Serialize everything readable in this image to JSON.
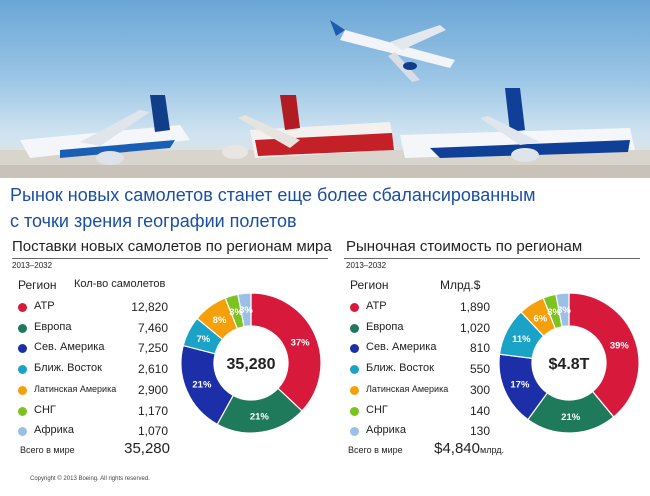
{
  "title_line1": "Рынок новых самолетов станет еще более сбалансированным",
  "title_line2": "с точки зрения географии полетов",
  "colors": {
    "АТР": "#d7193c",
    "Европа": "#1f7a5c",
    "Сев. Америка": "#1c2fa8",
    "Ближ. Восток": "#1aa3c6",
    "Латинская Америка": "#f5a00a",
    "СНГ": "#7cc320",
    "Африка": "#9cbfe6"
  },
  "left": {
    "heading": "Поставки новых самолетов по регионам мира",
    "period": "2013–2032",
    "col_region": "Регион",
    "col_value": "Кол-во самолетов",
    "rows": [
      {
        "name": "АТР",
        "value": "12,820"
      },
      {
        "name": "Европа",
        "value": "7,460"
      },
      {
        "name": "Сев. Америка",
        "value": "7,250"
      },
      {
        "name": "Ближ. Восток",
        "value": "2,610"
      },
      {
        "name": "Латинская Америка",
        "value": "2,900"
      },
      {
        "name": "СНГ",
        "value": "1,170"
      },
      {
        "name": "Африка",
        "value": "1,070"
      }
    ],
    "total_label": "Всего в мире",
    "total_value": "35,280",
    "center_label": "35,280"
  },
  "right": {
    "heading": "Рыночная стоимость по регионам",
    "period": "2013–2032",
    "col_region": "Регион",
    "col_value": "Млрд.$",
    "rows": [
      {
        "name": "АТР",
        "value": "1,890"
      },
      {
        "name": "Европа",
        "value": "1,020"
      },
      {
        "name": "Сев. Америка",
        "value": "810"
      },
      {
        "name": "Ближ. Восток",
        "value": "550"
      },
      {
        "name": "Латинская Америка",
        "value": "300"
      },
      {
        "name": "СНГ",
        "value": "140"
      },
      {
        "name": "Африка",
        "value": "130"
      }
    ],
    "total_label": "Всего в мире",
    "total_value": "$4,840",
    "total_unit": "млрд.",
    "center_label": "$4.8T"
  },
  "chart_data": [
    {
      "type": "pie",
      "title": "Поставки новых самолетов по регионам мира",
      "categories": [
        "АТР",
        "Европа",
        "Сев. Америка",
        "Ближ. Восток",
        "Латинская Америка",
        "СНГ",
        "Африка"
      ],
      "values": [
        37,
        21,
        21,
        7,
        8,
        3,
        3
      ],
      "labels": [
        "37%",
        "21%",
        "21%",
        "7%",
        "8%",
        "3%",
        "3%"
      ],
      "center": "35,280"
    },
    {
      "type": "pie",
      "title": "Рыночная стоимость по регионам",
      "categories": [
        "АТР",
        "Европа",
        "Сев. Америка",
        "Ближ. Восток",
        "Латинская Америка",
        "СНГ",
        "Африка"
      ],
      "values": [
        39,
        21,
        17,
        11,
        6,
        3,
        3
      ],
      "labels": [
        "39%",
        "21%",
        "17%",
        "11%",
        "6%",
        "3%",
        "3%"
      ],
      "center": "$4.8T"
    }
  ],
  "copyright": "Copyright © 2013 Boeing. All rights reserved."
}
